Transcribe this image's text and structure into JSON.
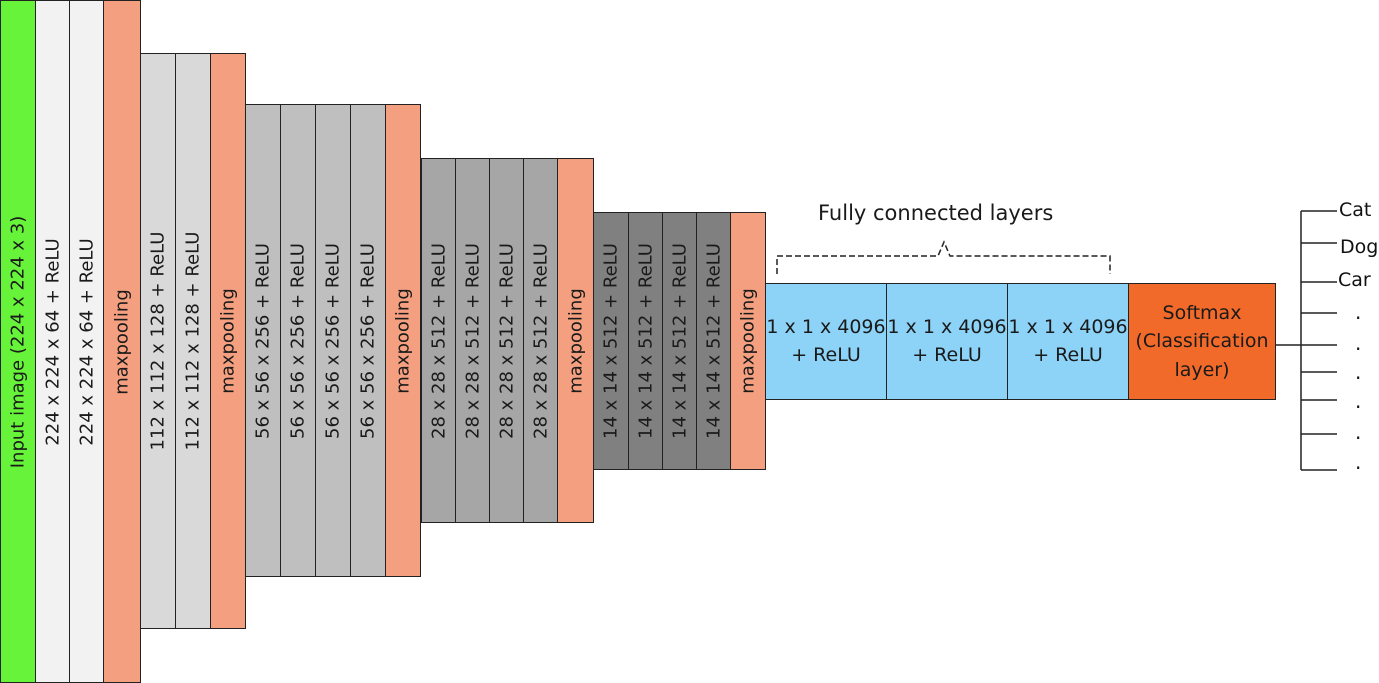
{
  "colors": {
    "input": "#66f33a",
    "block1": "#f2f2f2",
    "block2": "#d9d9d9",
    "block3": "#bfbfbf",
    "block4": "#a6a6a6",
    "block5": "#808080",
    "pool": "#f4a080",
    "fc": "#8cd3f7",
    "softmax": "#f26a2a"
  },
  "layers": [
    {
      "label": "Input image (224 x 224 x 3)",
      "type": "input"
    },
    {
      "label": "224 x 224 x 64 + ReLU",
      "type": "block1"
    },
    {
      "label": "224 x 224 x 64 + ReLU",
      "type": "block1"
    },
    {
      "label": "maxpooling",
      "type": "pool"
    },
    {
      "label": "112 x 112 x 128 + ReLU",
      "type": "block2"
    },
    {
      "label": "112 x 112 x 128 + ReLU",
      "type": "block2"
    },
    {
      "label": "maxpooling",
      "type": "pool"
    },
    {
      "label": "56 x 56 x 256 + ReLU",
      "type": "block3"
    },
    {
      "label": "56 x 56 x 256 + ReLU",
      "type": "block3"
    },
    {
      "label": "56 x 56 x 256 + ReLU",
      "type": "block3"
    },
    {
      "label": "56 x 56 x 256 + ReLU",
      "type": "block3"
    },
    {
      "label": "maxpooling",
      "type": "pool"
    },
    {
      "label": "28 x 28 x 512 + ReLU",
      "type": "block4"
    },
    {
      "label": "28 x 28 x 512 + ReLU",
      "type": "block4"
    },
    {
      "label": "28 x 28 x 512 + ReLU",
      "type": "block4"
    },
    {
      "label": "28 x 28 x 512 + ReLU",
      "type": "block4"
    },
    {
      "label": "maxpooling",
      "type": "pool"
    },
    {
      "label": "14 x 14 x 512 + ReLU",
      "type": "block5"
    },
    {
      "label": "14 x 14 x 512 + ReLU",
      "type": "block5"
    },
    {
      "label": "14 x 14 x 512 + ReLU",
      "type": "block5"
    },
    {
      "label": "14 x 14 x 512 + ReLU",
      "type": "block5"
    },
    {
      "label": "maxpooling",
      "type": "pool"
    }
  ],
  "fully_connected": {
    "title": "Fully connected layers",
    "layers": [
      {
        "line1": "1 x 1 x 4096",
        "line2": "+ ReLU"
      },
      {
        "line1": "1 x 1 x 4096",
        "line2": "+ ReLU"
      },
      {
        "line1": "1 x 1 x 4096",
        "line2": "+ ReLU"
      }
    ]
  },
  "softmax": {
    "line1": "Softmax",
    "line2": "(Classification",
    "line3": "layer)"
  },
  "outputs": [
    "Cat",
    "Dog",
    "Car"
  ],
  "output_dots": [
    ".",
    ".",
    ".",
    ".",
    ".",
    "."
  ]
}
